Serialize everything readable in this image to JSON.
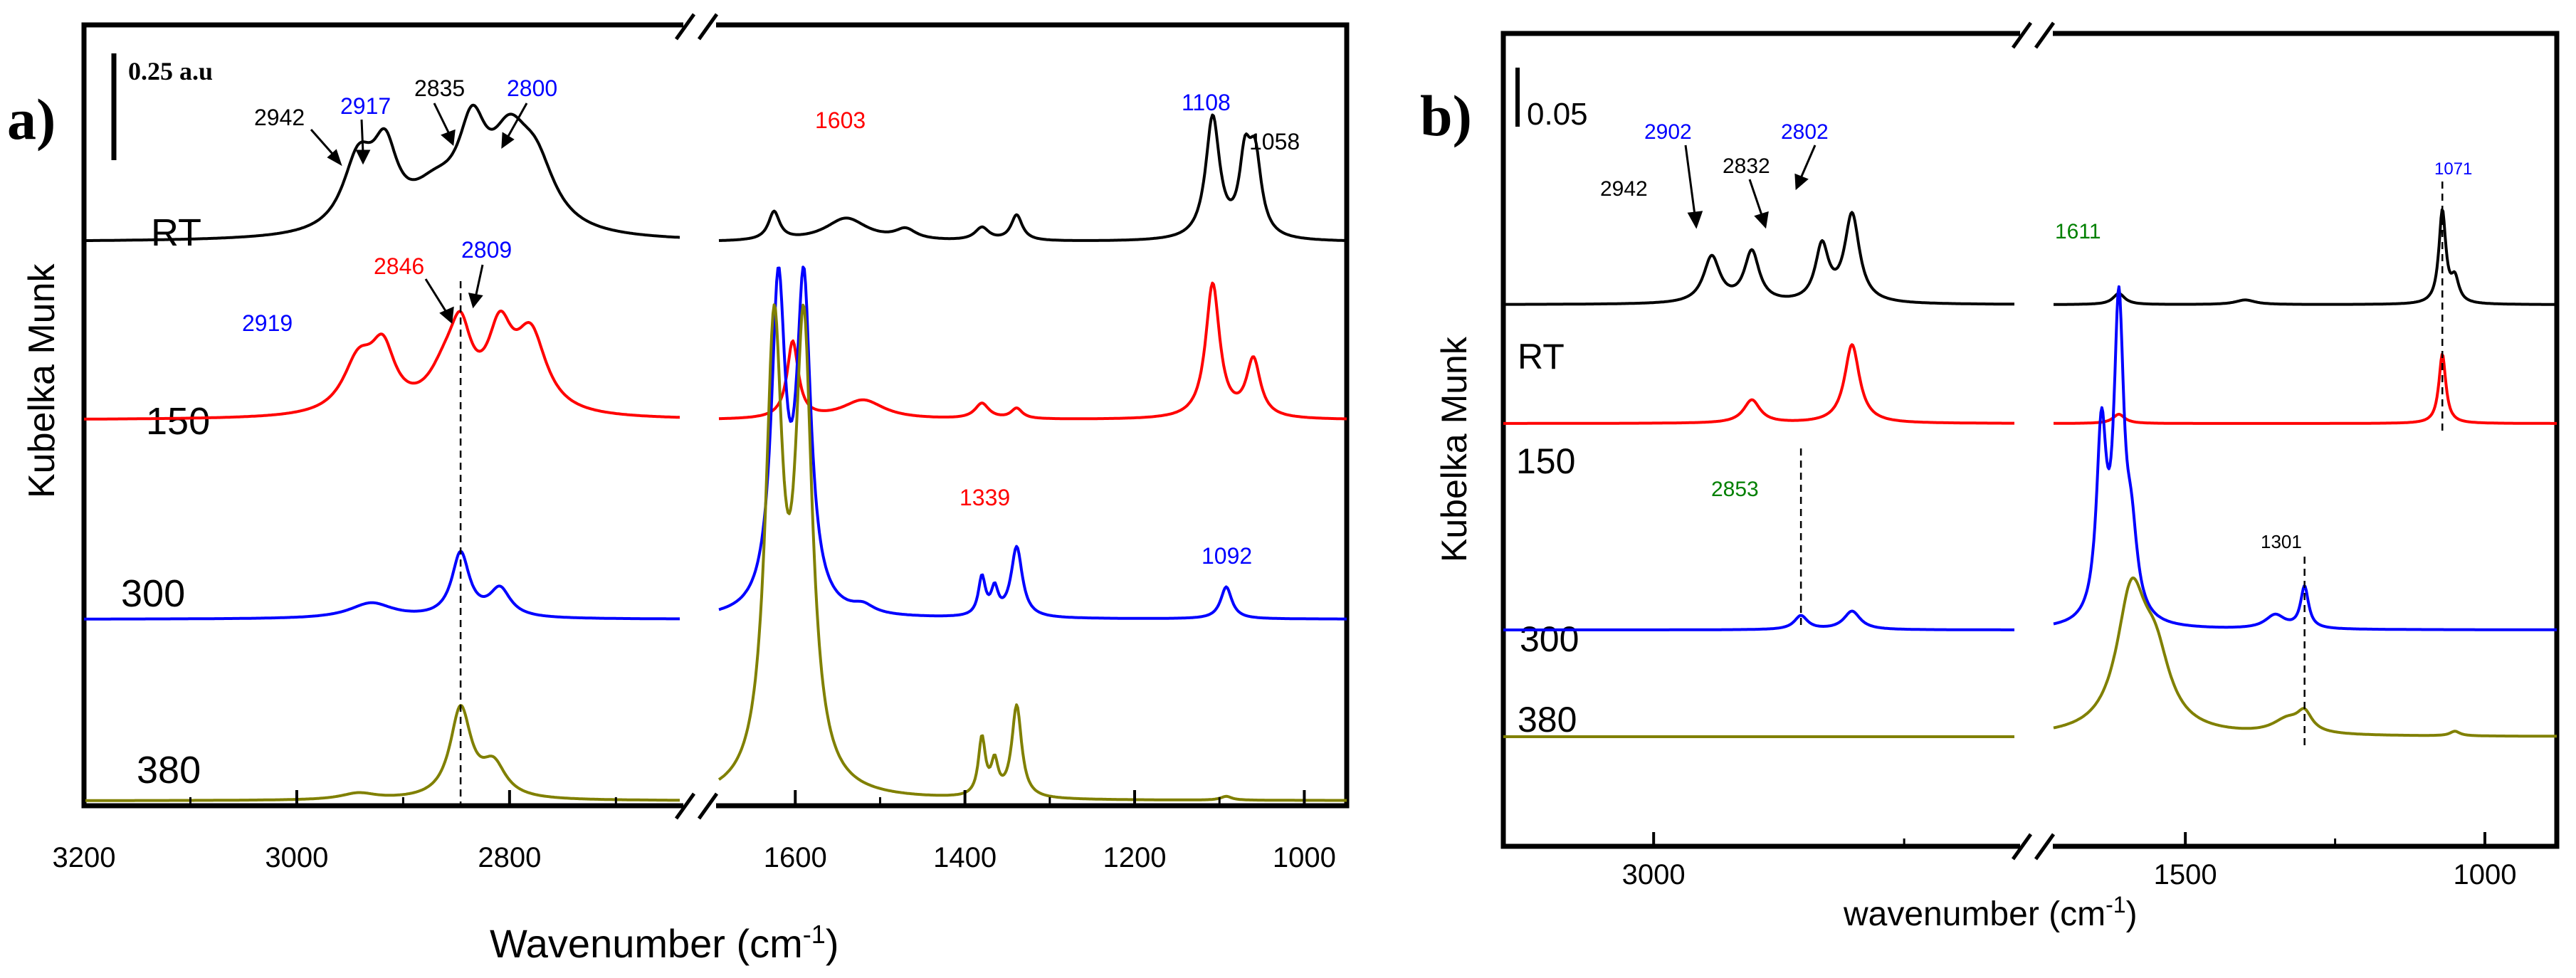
{
  "chart_data": [
    {
      "type": "line",
      "panel_label": "a)",
      "ylabel": "Kubelka Munk",
      "xlabel_text": "Wavenumber (cm",
      "xlabel_sup": "-1",
      "xlabel_tail": ")",
      "x_reversed": true,
      "x_segments": [
        {
          "xlim": [
            3200,
            2640
          ],
          "ticks": [
            3200,
            3000,
            2800
          ]
        },
        {
          "xlim": [
            1690,
            950
          ],
          "ticks": [
            1600,
            1400,
            1200,
            1000
          ]
        }
      ],
      "tick_labels": [
        "3200",
        "3000",
        "2800",
        "1600",
        "1400",
        "1200",
        "1000"
      ],
      "scale_bar_label": "0.25 a.u",
      "series": [
        {
          "name": "RT",
          "color": "#000000",
          "baseline": 0.0,
          "seg1_peaks": [
            [
              2942,
              0.55,
              18
            ],
            [
              2917,
              0.55,
              14
            ],
            [
              2870,
              0.3,
              30
            ],
            [
              2835,
              0.68,
              16
            ],
            [
              2800,
              0.62,
              22
            ],
            [
              2775,
              0.45,
              22
            ]
          ],
          "seg2_peaks": [
            [
              1625,
              0.22,
              8
            ],
            [
              1540,
              0.18,
              30
            ],
            [
              1470,
              0.08,
              15
            ],
            [
              1380,
              0.1,
              10
            ],
            [
              1339,
              0.2,
              8
            ],
            [
              1108,
              0.95,
              10
            ],
            [
              1070,
              0.55,
              8
            ],
            [
              1058,
              0.6,
              9
            ]
          ]
        },
        {
          "name": "150",
          "color": "#ff0000",
          "baseline": 0.0,
          "seg1_peaks": [
            [
              2942,
              0.4,
              18
            ],
            [
              2919,
              0.45,
              14
            ],
            [
              2860,
              0.3,
              20
            ],
            [
              2846,
              0.5,
              12
            ],
            [
              2809,
              0.58,
              14
            ],
            [
              2780,
              0.6,
              18
            ]
          ],
          "seg2_peaks": [
            [
              1603,
              0.6,
              8
            ],
            [
              1520,
              0.15,
              30
            ],
            [
              1380,
              0.12,
              10
            ],
            [
              1339,
              0.08,
              8
            ],
            [
              1108,
              1.05,
              10
            ],
            [
              1060,
              0.45,
              10
            ]
          ]
        },
        {
          "name": "300",
          "color": "#0000ff",
          "baseline": 0.0,
          "seg1_peaks": [
            [
              2930,
              0.12,
              25
            ],
            [
              2846,
              0.5,
              10
            ],
            [
              2809,
              0.22,
              12
            ]
          ],
          "seg2_peaks": [
            [
              1620,
              2.5,
              10
            ],
            [
              1590,
              2.5,
              10
            ],
            [
              1520,
              0.06,
              15
            ],
            [
              1380,
              0.3,
              5
            ],
            [
              1365,
              0.2,
              5
            ],
            [
              1339,
              0.55,
              8
            ],
            [
              1092,
              0.25,
              8
            ]
          ]
        },
        {
          "name": "380",
          "color": "#808000",
          "baseline": 0.0,
          "seg1_peaks": [
            [
              2942,
              0.05,
              20
            ],
            [
              2846,
              0.7,
              12
            ],
            [
              2815,
              0.25,
              14
            ]
          ],
          "seg2_peaks": [
            [
              1625,
              3.5,
              12
            ],
            [
              1590,
              3.5,
              12
            ],
            [
              1380,
              0.45,
              5
            ],
            [
              1365,
              0.25,
              5
            ],
            [
              1339,
              0.72,
              7
            ],
            [
              1092,
              0.03,
              8
            ]
          ]
        }
      ],
      "peak_labels": [
        {
          "text": "2942",
          "color": "#000000",
          "x": 2942
        },
        {
          "text": "2917",
          "color": "#0000ff",
          "x": 2917
        },
        {
          "text": "2835",
          "color": "#000000",
          "x": 2835
        },
        {
          "text": "2800",
          "color": "#0000ff",
          "x": 2800
        },
        {
          "text": "2846",
          "color": "#ff0000",
          "x": 2846
        },
        {
          "text": "2809",
          "color": "#0000ff",
          "x": 2809
        },
        {
          "text": "2919",
          "color": "#0000ff",
          "x": 2919
        },
        {
          "text": "1603",
          "color": "#ff0000",
          "x": 1603
        },
        {
          "text": "1108",
          "color": "#0000ff",
          "x": 1108
        },
        {
          "text": "1058",
          "color": "#000000",
          "x": 1058
        },
        {
          "text": "1339",
          "color": "#ff0000",
          "x": 1339
        },
        {
          "text": "1092",
          "color": "#0000ff",
          "x": 1092
        }
      ],
      "guide_line_x": 2846
    },
    {
      "type": "line",
      "panel_label": "b)",
      "ylabel": "Kubelka Munk",
      "xlabel_text": "wavenumber (cm",
      "xlabel_sup": "-1",
      "xlabel_tail": ")",
      "x_reversed": true,
      "x_segments": [
        {
          "xlim": [
            3150,
            2640
          ],
          "ticks": [
            3000
          ]
        },
        {
          "xlim": [
            1720,
            880
          ],
          "ticks": [
            1500,
            1000
          ]
        }
      ],
      "tick_labels": [
        "3000",
        "1500",
        "1000"
      ],
      "scale_bar_label": "0.05",
      "series": [
        {
          "name": "RT",
          "color": "#000000",
          "seg1_peaks": [
            [
              2942,
              0.5,
              10
            ],
            [
              2902,
              0.55,
              9
            ],
            [
              2832,
              0.6,
              8
            ],
            [
              2802,
              0.95,
              9
            ]
          ],
          "seg2_peaks": [
            [
              1611,
              0.12,
              12
            ],
            [
              1400,
              0.05,
              20
            ],
            [
              1071,
              1.0,
              7
            ],
            [
              1050,
              0.25,
              8
            ]
          ]
        },
        {
          "name": "150",
          "color": "#ff0000",
          "seg1_peaks": [
            [
              2902,
              0.25,
              10
            ],
            [
              2802,
              0.85,
              9
            ]
          ],
          "seg2_peaks": [
            [
              1611,
              0.1,
              12
            ],
            [
              1071,
              0.75,
              7
            ]
          ]
        },
        {
          "name": "300",
          "color": "#0000ff",
          "seg1_peaks": [
            [
              2853,
              0.15,
              8
            ],
            [
              2802,
              0.2,
              10
            ]
          ],
          "seg2_peaks": [
            [
              1640,
              2.0,
              10
            ],
            [
              1611,
              3.3,
              10
            ],
            [
              1590,
              0.8,
              12
            ],
            [
              1350,
              0.15,
              20
            ],
            [
              1301,
              0.45,
              8
            ]
          ]
        },
        {
          "name": "380",
          "color": "#808000",
          "seg1_peaks": [],
          "seg2_peaks": [
            [
              1590,
              1.45,
              30
            ],
            [
              1550,
              0.7,
              30
            ],
            [
              1330,
              0.15,
              30
            ],
            [
              1301,
              0.2,
              15
            ],
            [
              1050,
              0.05,
              10
            ]
          ]
        }
      ],
      "peak_labels": [
        {
          "text": "2942",
          "color": "#000000",
          "x": 2942
        },
        {
          "text": "2902",
          "color": "#0000ff",
          "x": 2902
        },
        {
          "text": "2832",
          "color": "#000000",
          "x": 2832
        },
        {
          "text": "2802",
          "color": "#0000ff",
          "x": 2802
        },
        {
          "text": "1611",
          "color": "#008000",
          "x": 1611
        },
        {
          "text": "1071",
          "color": "#0000ff",
          "x": 1071
        },
        {
          "text": "2853",
          "color": "#008000",
          "x": 2853
        },
        {
          "text": "1301",
          "color": "#000000",
          "x": 1301
        }
      ],
      "guide_lines_x": [
        2853,
        1071,
        1301
      ]
    }
  ]
}
